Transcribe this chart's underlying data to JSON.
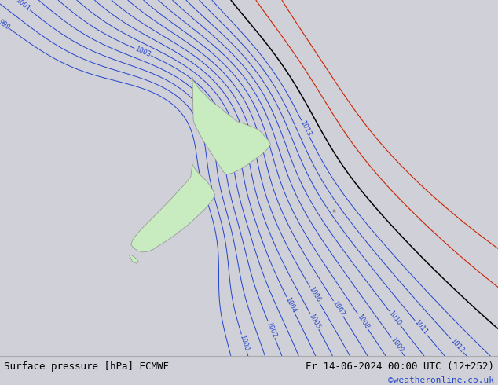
{
  "title_left": "Surface pressure [hPa] ECMWF",
  "title_right": "Fr 14-06-2024 00:00 UTC (12+252)",
  "credit": "©weatheronline.co.uk",
  "bg_color": "#d0d0d8",
  "land_color": "#c8ecc0",
  "coast_color": "#909090",
  "contour_blue": "#2244cc",
  "contour_black": "#000000",
  "contour_red": "#cc2200",
  "footer_bg": "#dcdce4",
  "footer_text": "#000000",
  "credit_color": "#2244cc",
  "font_size_footer": 9,
  "font_size_label": 6,
  "lon_min": 158,
  "lon_max": 196,
  "lat_min": -54,
  "lat_max": -29,
  "low_lon": 147.0,
  "low_lat": -50.0,
  "low_val": 988.0,
  "high_lon": 205.0,
  "high_lat": -25.0,
  "high_val": 1030.0,
  "trough_lon": 172.0,
  "trough_lat": -37.0,
  "trough_depth": 6.0
}
